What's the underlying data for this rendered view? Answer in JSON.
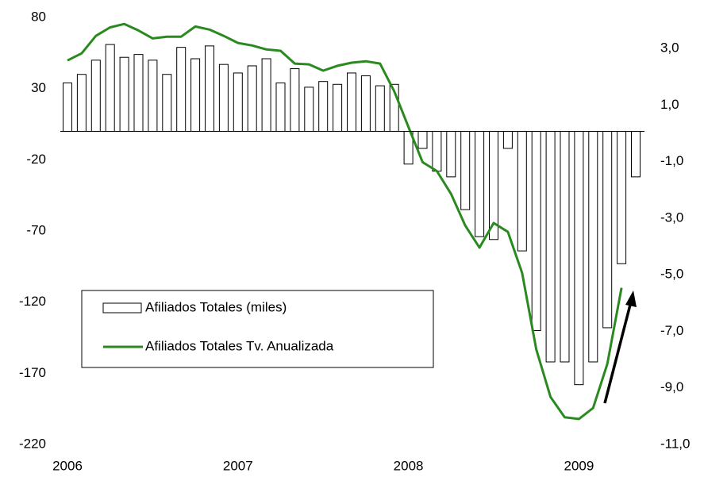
{
  "chart_data": {
    "type": "bar",
    "categories": [
      "2006",
      null,
      null,
      null,
      null,
      null,
      null,
      null,
      null,
      null,
      null,
      null,
      "2007",
      null,
      null,
      null,
      null,
      null,
      null,
      null,
      null,
      null,
      null,
      null,
      "2008",
      null,
      null,
      null,
      null,
      null,
      null,
      null,
      null,
      null,
      null,
      null,
      "2009",
      null,
      null,
      null,
      null
    ],
    "series": [
      {
        "name": "Afiliados Totales (miles)",
        "type": "bar",
        "color": "#ffffff",
        "values": [
          34,
          40,
          50,
          61,
          52,
          54,
          50,
          40,
          59,
          51,
          60,
          47,
          41,
          46,
          51,
          34,
          44,
          31,
          35,
          33,
          41,
          39,
          32,
          33,
          -23,
          -12,
          -28,
          -32,
          -55,
          -74,
          -76,
          -12,
          -84,
          -140,
          -162,
          -162,
          -178,
          -162,
          -138,
          -93,
          -32
        ]
      },
      {
        "name": "Afiliados Totales Tv. Anualizada",
        "type": "line",
        "color": "#2a8a1f",
        "axis": "y2",
        "values": [
          2.58,
          2.83,
          3.45,
          3.75,
          3.87,
          3.64,
          3.36,
          3.42,
          3.42,
          3.78,
          3.67,
          3.45,
          3.2,
          3.11,
          2.97,
          2.92,
          2.47,
          2.44,
          2.22,
          2.39,
          2.5,
          2.55,
          2.47,
          1.49,
          0.23,
          -1.02,
          -1.33,
          -2.14,
          -3.26,
          -4.04,
          -3.17,
          -3.48,
          -4.93,
          -7.64,
          -9.32,
          -10.04,
          -10.1,
          -9.71,
          -8.15,
          -5.46,
          null
        ]
      }
    ],
    "ylim": [
      -220,
      80
    ],
    "yticks": [
      80,
      30,
      -20,
      -70,
      -120,
      -170,
      -220
    ],
    "y2lim": [
      -11,
      4.1
    ],
    "y2ticks": [
      {
        "value": 3,
        "label": "3,0"
      },
      {
        "value": 1,
        "label": "1,0"
      },
      {
        "value": -1,
        "label": "-1,0"
      },
      {
        "value": -3,
        "label": "-3,0"
      },
      {
        "value": -5,
        "label": "-5,0"
      },
      {
        "value": -7,
        "label": "-7,0"
      },
      {
        "value": -9,
        "label": "-9,0"
      },
      {
        "value": -11,
        "label": "-11,0"
      }
    ],
    "grid": false,
    "legend": "left"
  }
}
